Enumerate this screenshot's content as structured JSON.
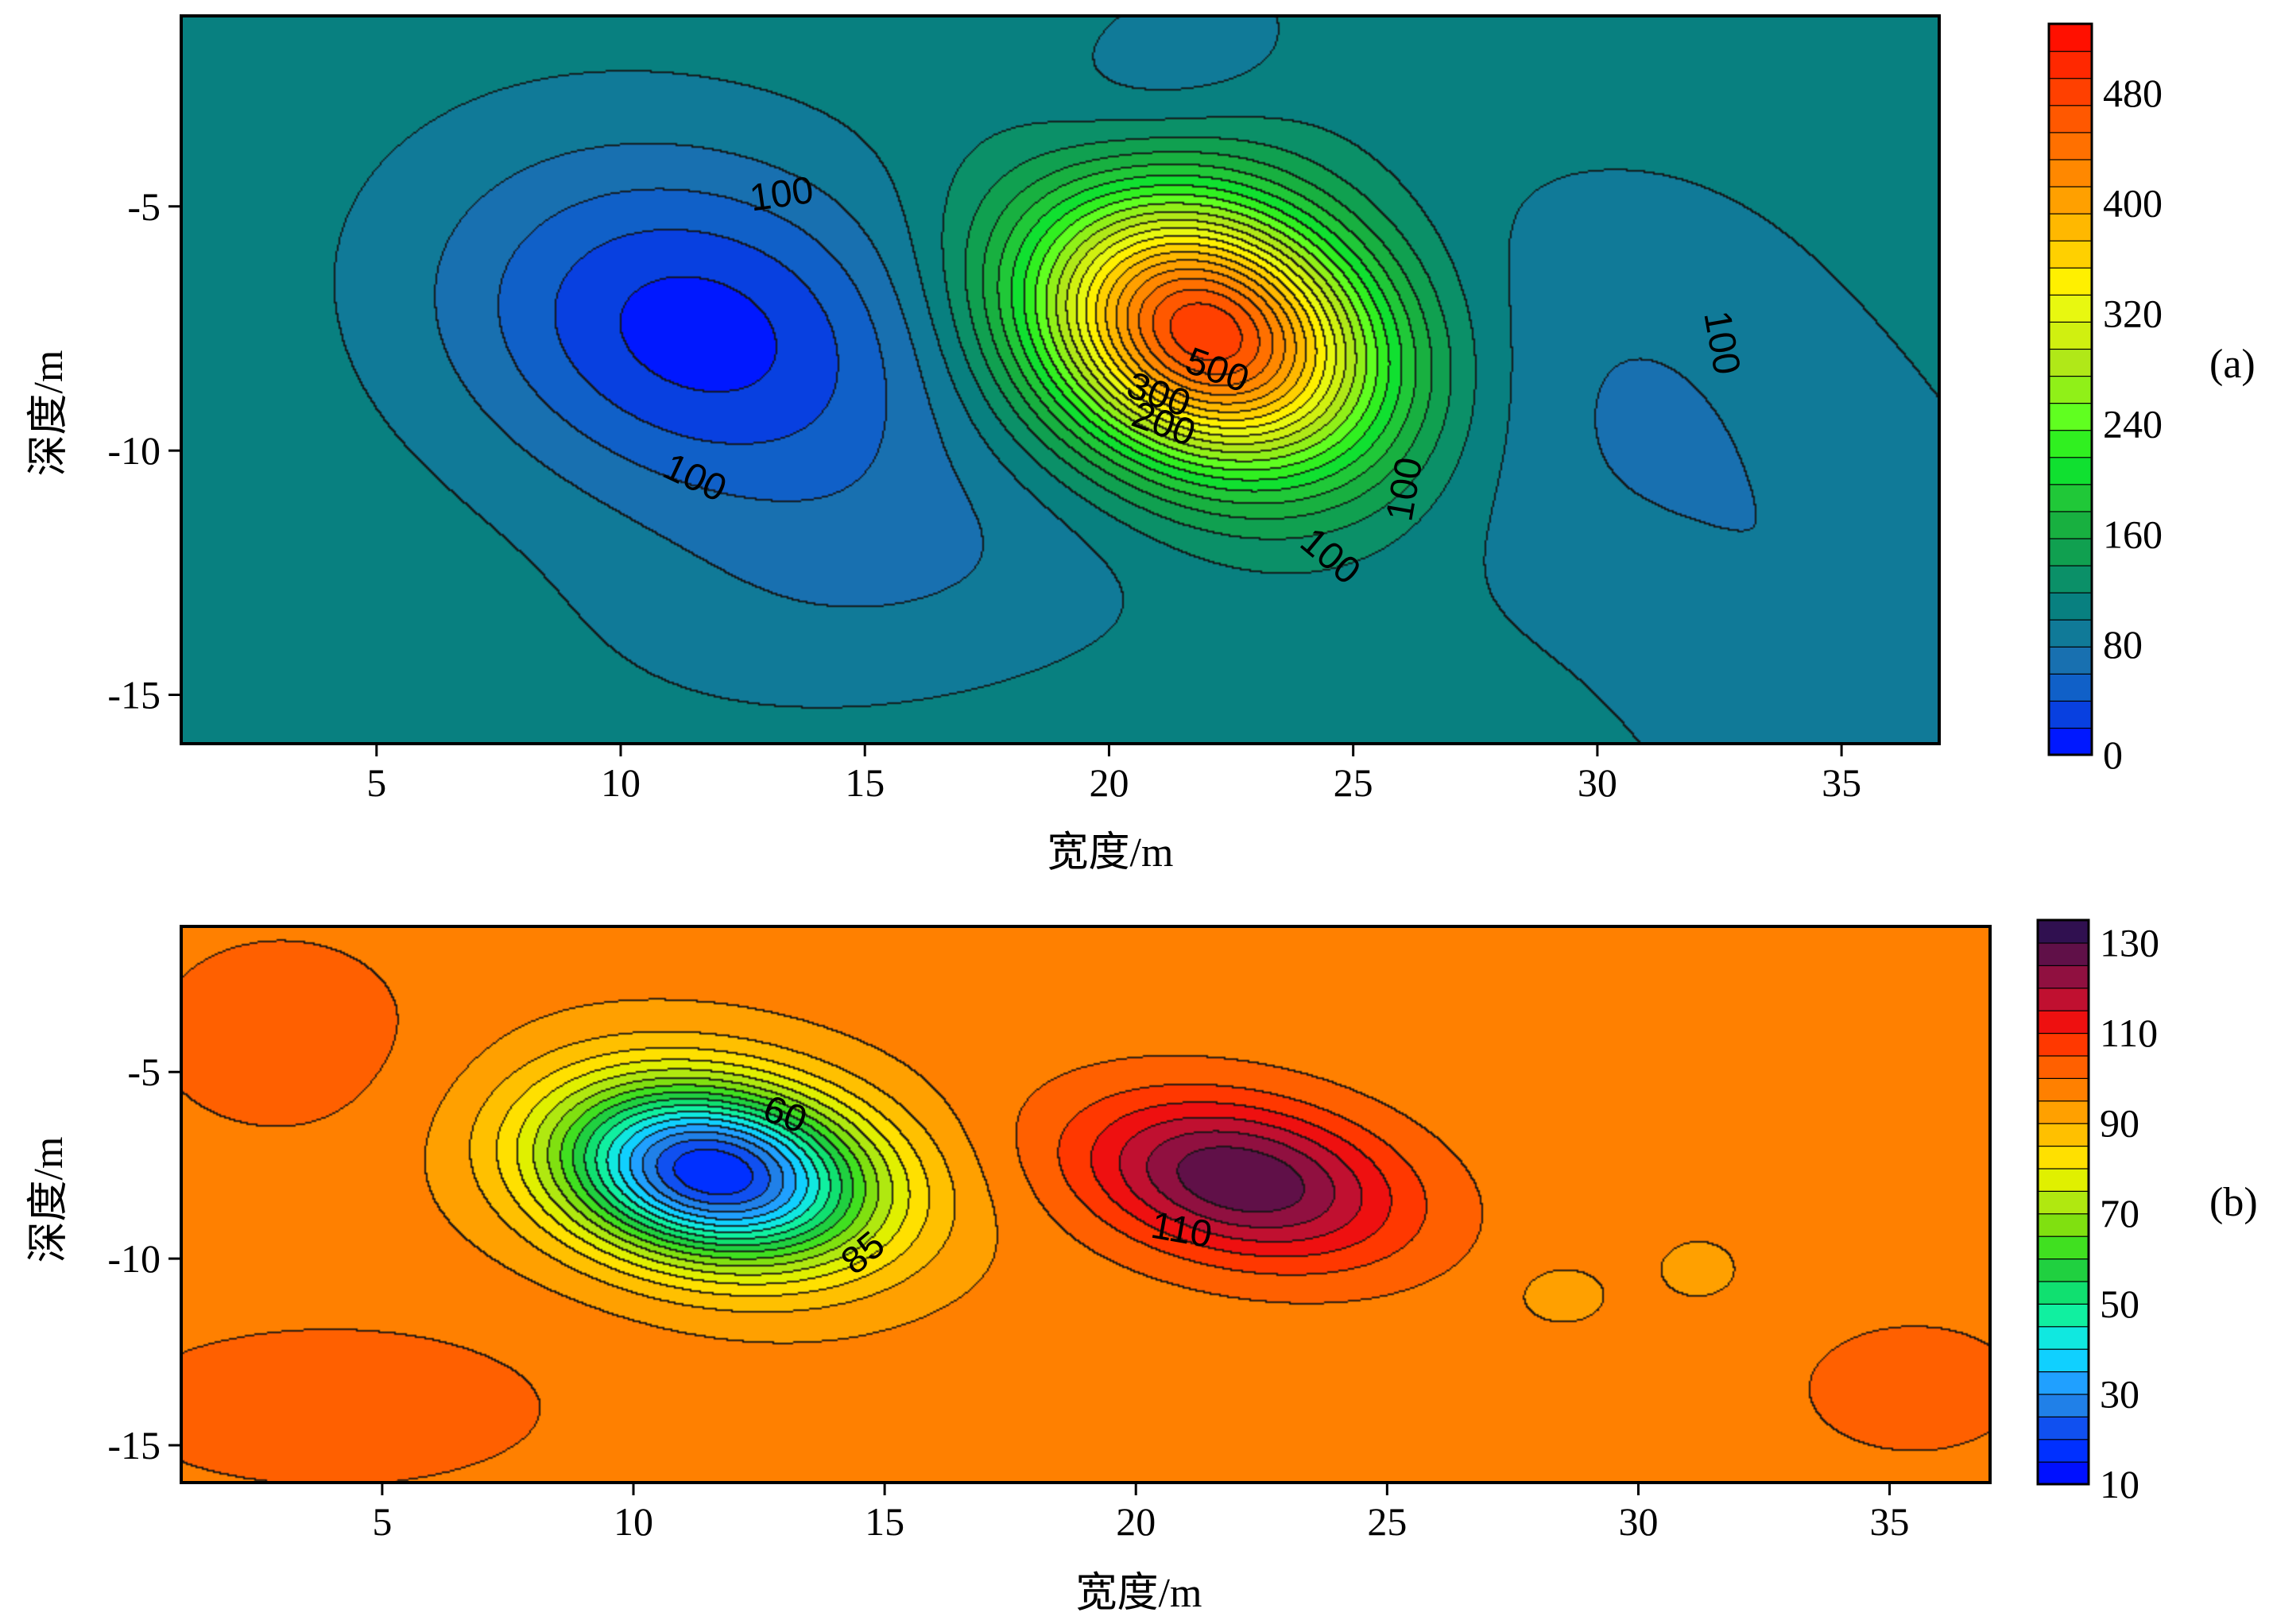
{
  "chart_data": [
    {
      "type": "heatmap",
      "panel_label": "(a)",
      "xlabel": "宽度/m",
      "ylabel": "深度/m",
      "xlim": [
        1,
        37
      ],
      "ylim": [
        -16,
        -1.1
      ],
      "xticks": [
        5,
        10,
        15,
        20,
        25,
        30,
        35
      ],
      "yticks": [
        -5,
        -10,
        -15
      ],
      "colorbar": {
        "range": [
          0,
          530
        ],
        "step": 20,
        "tick_values": [
          0,
          80,
          160,
          240,
          320,
          400,
          480
        ],
        "tick_labels": [
          "0",
          "80",
          "160",
          "240",
          "320",
          "400",
          "480"
        ],
        "colors": [
          "#0018ff",
          "#0840e0",
          "#1060c8",
          "#1870b0",
          "#107a98",
          "#088080",
          "#0b9068",
          "#10a050",
          "#18b040",
          "#20c838",
          "#10e030",
          "#30f020",
          "#60ff20",
          "#90f018",
          "#b0e818",
          "#d0f010",
          "#e8f810",
          "#fff000",
          "#ffd000",
          "#ffb800",
          "#ffa000",
          "#ff8800",
          "#ff7000",
          "#ff5800",
          "#ff4000",
          "#ff2800",
          "#ff1000"
        ]
      },
      "background_value": 110,
      "features": [
        {
          "x": 11.6,
          "y": -7.6,
          "rx": 5.0,
          "ry": 3.4,
          "amplitude": -100,
          "angle": -15
        },
        {
          "x": 22.0,
          "y": -7.6,
          "rx": 3.6,
          "ry": 2.6,
          "amplitude": 390,
          "angle": -22
        },
        {
          "x": 30.2,
          "y": -9.0,
          "rx": 4.5,
          "ry": 4.5,
          "amplitude": -30,
          "angle": 0
        },
        {
          "x": 16.0,
          "y": -12.5,
          "rx": 6.0,
          "ry": 2.6,
          "amplitude": -25,
          "angle": 10
        },
        {
          "x": 21.0,
          "y": -2.5,
          "rx": 3.0,
          "ry": 1.8,
          "amplitude": -25,
          "angle": 30
        },
        {
          "x": 35.0,
          "y": -14.0,
          "rx": 4.0,
          "ry": 5.0,
          "amplitude": -25,
          "angle": 0
        }
      ],
      "contour_labels": [
        {
          "text": "100",
          "x": 13.3,
          "y": -4.8,
          "angle": -8
        },
        {
          "text": "100",
          "x": 11.5,
          "y": -10.6,
          "angle": 25
        },
        {
          "text": "500",
          "x": 22.2,
          "y": -8.4,
          "angle": 20
        },
        {
          "text": "300",
          "x": 21.0,
          "y": -8.9,
          "angle": 20
        },
        {
          "text": "200",
          "x": 21.1,
          "y": -9.5,
          "angle": 20
        },
        {
          "text": "100",
          "x": 24.5,
          "y": -12.2,
          "angle": 40
        },
        {
          "text": "100",
          "x": 26.1,
          "y": -10.8,
          "angle": -80
        },
        {
          "text": "100",
          "x": 32.5,
          "y": -7.8,
          "angle": 80
        }
      ]
    },
    {
      "type": "heatmap",
      "panel_label": "(b)",
      "xlabel": "宽度/m",
      "ylabel": "深度/m",
      "xlim": [
        1,
        37
      ],
      "ylim": [
        -16,
        -1.1
      ],
      "xticks": [
        5,
        10,
        15,
        20,
        25,
        30,
        35
      ],
      "yticks": [
        -5,
        -10,
        -15
      ],
      "colorbar": {
        "range": [
          10,
          135
        ],
        "step": 5,
        "tick_values": [
          10,
          30,
          50,
          70,
          90,
          110,
          130
        ],
        "tick_labels": [
          "10",
          "30",
          "50",
          "70",
          "90",
          "110",
          "130"
        ],
        "colors": [
          "#0010ff",
          "#0030ff",
          "#1050f0",
          "#2080e8",
          "#20a0ff",
          "#10d0ff",
          "#10e8e0",
          "#10f0a0",
          "#10e070",
          "#20d040",
          "#40e020",
          "#80e010",
          "#b0e810",
          "#e0f000",
          "#ffe000",
          "#ffc000",
          "#ffa000",
          "#ff8000",
          "#ff6000",
          "#ff3800",
          "#ee1010",
          "#c01030",
          "#901040",
          "#601048",
          "#301050"
        ]
      },
      "background_value": 97,
      "features": [
        {
          "x": 11.6,
          "y": -7.7,
          "rx": 3.2,
          "ry": 2.3,
          "amplitude": -82,
          "angle": -18
        },
        {
          "x": 22.1,
          "y": -7.9,
          "rx": 3.2,
          "ry": 2.0,
          "amplitude": 33,
          "angle": -18
        },
        {
          "x": 28.5,
          "y": -11.0,
          "rx": 0.8,
          "ry": 0.7,
          "amplitude": -6,
          "angle": 0
        },
        {
          "x": 31.2,
          "y": -10.3,
          "rx": 0.7,
          "ry": 0.7,
          "amplitude": -6,
          "angle": 0
        },
        {
          "x": 3.0,
          "y": -4.0,
          "rx": 3.0,
          "ry": 3.0,
          "amplitude": 6,
          "angle": 0
        },
        {
          "x": 4.0,
          "y": -14.0,
          "rx": 5.0,
          "ry": 2.5,
          "amplitude": 6,
          "angle": 0
        },
        {
          "x": 35.5,
          "y": -13.5,
          "rx": 2.5,
          "ry": 2.0,
          "amplitude": 6,
          "angle": 0
        }
      ],
      "contour_labels": [
        {
          "text": "60",
          "x": 13.0,
          "y": -6.2,
          "angle": 20
        },
        {
          "text": "85",
          "x": 14.6,
          "y": -9.9,
          "angle": -40
        },
        {
          "text": "110",
          "x": 20.9,
          "y": -9.3,
          "angle": 10
        }
      ]
    }
  ]
}
